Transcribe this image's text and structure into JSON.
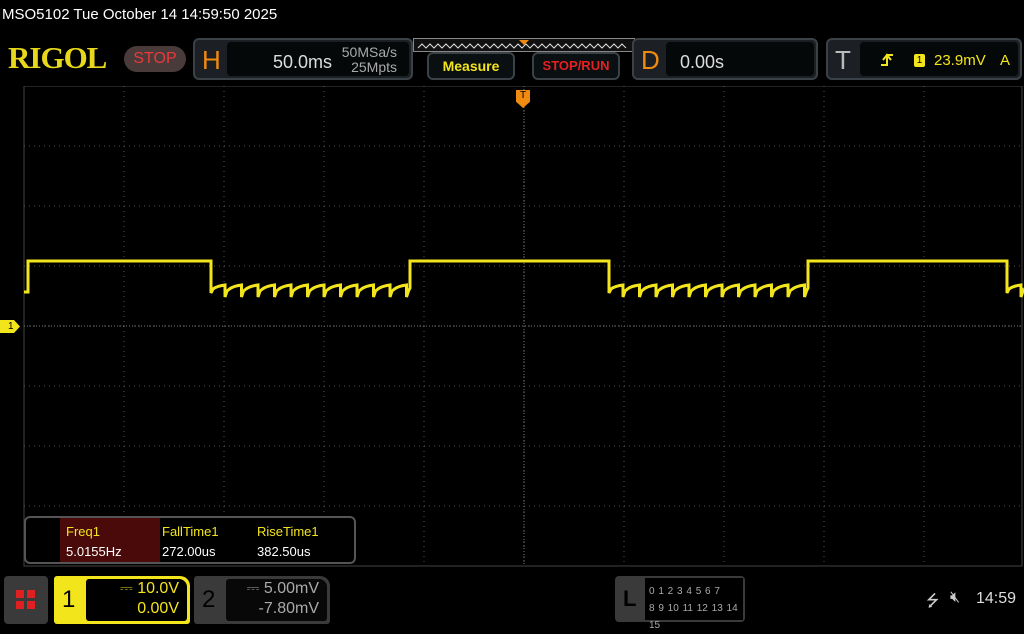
{
  "status_bar": {
    "title": "MSO5102  Tue October 14 14:59:50 2025"
  },
  "header": {
    "logo": "RIGOL",
    "run_state": "STOP",
    "horizontal": {
      "letter": "H",
      "timebase": "50.0ms",
      "sample_rate": "50MSa/s",
      "memory_depth": "25Mpts"
    },
    "measure_label": "Measure",
    "stop_run_label": "STOP/RUN",
    "delay": {
      "letter": "D",
      "value": "0.00s"
    },
    "trigger": {
      "letter": "T",
      "slope_icon": "rising-edge-icon",
      "source": "1",
      "level": "23.9mV",
      "mode": "A"
    }
  },
  "screen": {
    "channel1_marker": "1",
    "trigger_marker": "T",
    "trace_color": "#f3e51c"
  },
  "measurements": [
    {
      "name": "Freq1",
      "value": "5.0155Hz"
    },
    {
      "name": "FallTime1",
      "value": "272.00us"
    },
    {
      "name": "RiseTime1",
      "value": "382.50us"
    }
  ],
  "channels": [
    {
      "num": "1",
      "coupling_icon": "dc-icon",
      "scale": "10.0V",
      "offset": "0.00V",
      "color": "#f3e51c"
    },
    {
      "num": "2",
      "coupling_icon": "dc-icon",
      "scale": "5.00mV",
      "offset": "-7.80mV",
      "color": "#888888"
    }
  ],
  "logic": {
    "letter": "L",
    "row1": "0 1 2 3  4 5 6 7",
    "row2": "8 9 10 11 12 13 14 15"
  },
  "system": {
    "usb_icon": "usb-icon",
    "sound_icon": "mute-icon",
    "clock": "14:59"
  }
}
